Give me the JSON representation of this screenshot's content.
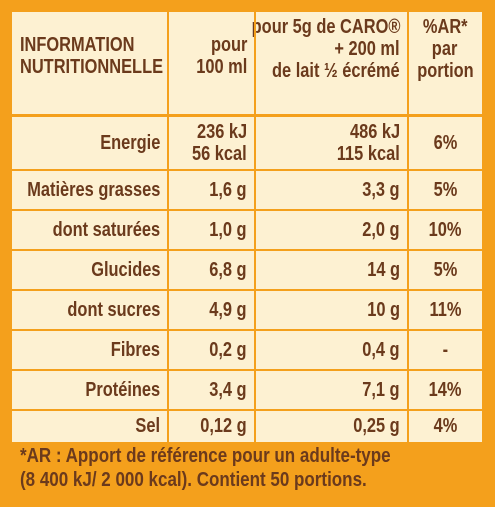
{
  "header": {
    "label": [
      "INFORMATION",
      "NUTRITIONNELLE"
    ],
    "per100": [
      "pour",
      "100 ml"
    ],
    "perPortion": [
      "pour 5g de CARO®",
      "+ 200 ml",
      "de lait ½ écrémé"
    ],
    "ar": [
      "%AR*",
      "par",
      "portion"
    ]
  },
  "rows": [
    {
      "label": "Energie",
      "per100": [
        "236 kJ",
        "56 kcal"
      ],
      "perPortion": [
        "486 kJ",
        "115 kcal"
      ],
      "ar": "6%"
    },
    {
      "label": "Matières grasses",
      "per100": "1,6 g",
      "perPortion": "3,3 g",
      "ar": "5%"
    },
    {
      "label": "dont saturées",
      "per100": "1,0 g",
      "perPortion": "2,0 g",
      "ar": "10%"
    },
    {
      "label": "Glucides",
      "per100": "6,8 g",
      "perPortion": "14 g",
      "ar": "5%"
    },
    {
      "label": "dont sucres",
      "per100": "4,9 g",
      "perPortion": "10 g",
      "ar": "11%"
    },
    {
      "label": "Fibres",
      "per100": "0,2 g",
      "perPortion": "0,4 g",
      "ar": "-"
    },
    {
      "label": "Protéines",
      "per100": "3,4 g",
      "perPortion": "7,1 g",
      "ar": "14%"
    },
    {
      "label": "Sel",
      "per100": "0,12 g",
      "perPortion": "0,25 g",
      "ar": "4%"
    }
  ],
  "footer": [
    "*AR : Apport de référence pour un adulte-type",
    "(8 400 kJ/ 2 000 kcal). Contient 50 portions."
  ]
}
